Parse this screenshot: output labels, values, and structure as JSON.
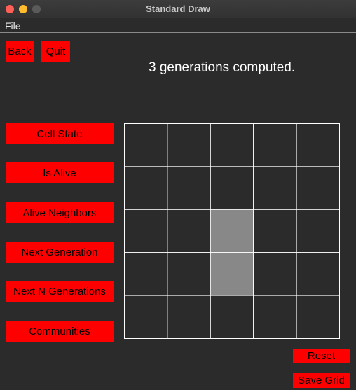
{
  "window": {
    "title": "Standard Draw"
  },
  "menu": {
    "file": "File"
  },
  "top_buttons": {
    "back": "Back",
    "quit": "Quit"
  },
  "status_text": "3 generations computed.",
  "side_buttons": {
    "cell_state": "Cell State",
    "is_alive": "Is Alive",
    "alive_neighbors": "Alive Neighbors",
    "next_generation": "Next Generation",
    "next_n_generations": "Next N Generations",
    "communities": "Communities"
  },
  "bottom_buttons": {
    "reset": "Reset",
    "save_grid": "Save Grid"
  },
  "grid": {
    "rows": 5,
    "cols": 5,
    "alive_cells": [
      [
        2,
        2
      ],
      [
        3,
        2
      ]
    ],
    "alive_color": "#888888",
    "dead_color": "#2b2b2b",
    "line_color": "#ffffff"
  },
  "colors": {
    "button": "#ff0000",
    "background": "#2b2b2b"
  }
}
